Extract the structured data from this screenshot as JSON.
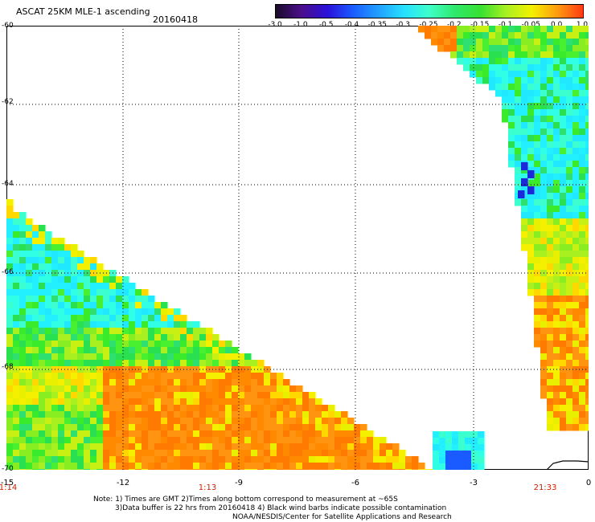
{
  "header": {
    "title": "ASCAT 25KM MLE-1 ascending",
    "date": "20160418"
  },
  "colorbar": {
    "ticks": [
      "-3.0",
      "-1.0",
      "-0.5",
      "-0.4",
      "-0.35",
      "-0.3",
      "-0.25",
      "-0.2",
      "-0.15",
      "-0.1",
      "-0.05",
      "0.0",
      "1.0"
    ],
    "colors": [
      "#1a0a2a",
      "#4b0f8c",
      "#2a10d8",
      "#1a5bff",
      "#1fa0ff",
      "#26e0ff",
      "#3effc8",
      "#2fe86a",
      "#38e030",
      "#a8f020",
      "#f5f000",
      "#ff9a10",
      "#ff3a14"
    ]
  },
  "map": {
    "lat_labels": [
      "-60",
      "-62",
      "-64",
      "-66",
      "-68",
      "-70"
    ],
    "lon_labels": [
      "-15",
      "-12",
      "-9",
      "-6",
      "-3",
      "0"
    ],
    "time_labels": [
      "1:14",
      "1:13",
      "21:33"
    ]
  },
  "notes": {
    "line1": "Note: 1) Times are GMT 2)Times along bottom correspond to measurement at ~65S",
    "line2": "3)Data buffer is 22 hrs from 20160418 4) Black wind barbs indicate possible contamination",
    "line3": "NOAA/NESDIS/Center for Satellite Applications and Research"
  }
}
